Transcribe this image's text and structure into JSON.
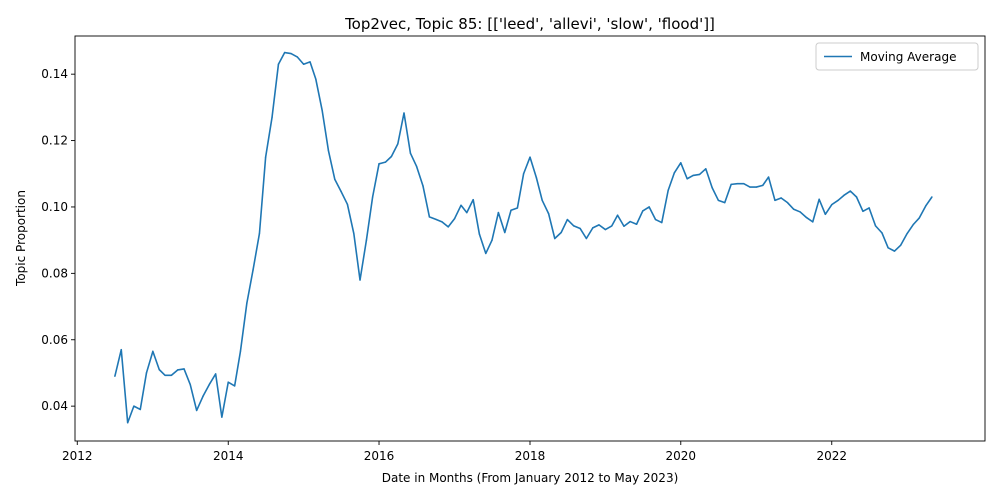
{
  "chart_data": {
    "type": "line",
    "title": "Top2vec, Topic 85: [['leed', 'allevi', 'slow', 'flood']]",
    "xlabel": "Date in Months (From January 2012 to May 2023)",
    "ylabel": "Topic Proportion",
    "xlim": [
      "2011-12-21",
      "2024-01-13"
    ],
    "ylim": [
      0.0295,
      0.1515
    ],
    "x_ticks": [
      "2012-01-01",
      "2014-01-01",
      "2016-01-01",
      "2018-01-01",
      "2020-01-01",
      "2022-01-01"
    ],
    "x_tick_labels": [
      "2012",
      "2014",
      "2016",
      "2018",
      "2020",
      "2022"
    ],
    "y_ticks": [
      0.04,
      0.06,
      0.08,
      0.1,
      0.12,
      0.14
    ],
    "y_tick_labels": [
      "0.04",
      "0.06",
      "0.08",
      "0.10",
      "0.12",
      "0.14"
    ],
    "grid": false,
    "legend": {
      "position": "top-right",
      "entries": [
        "Moving Average"
      ]
    },
    "series": [
      {
        "name": "Moving Average",
        "color": "#1f77b4",
        "x": [
          "2012-07-01",
          "2012-08-01",
          "2012-09-01",
          "2012-10-01",
          "2012-11-01",
          "2012-12-01",
          "2013-01-01",
          "2013-02-01",
          "2013-03-01",
          "2013-04-01",
          "2013-05-01",
          "2013-06-01",
          "2013-07-01",
          "2013-08-01",
          "2013-09-01",
          "2013-10-01",
          "2013-11-01",
          "2013-12-01",
          "2014-01-01",
          "2014-02-01",
          "2014-03-01",
          "2014-04-01",
          "2014-05-01",
          "2014-06-01",
          "2014-07-01",
          "2014-08-01",
          "2014-09-01",
          "2014-10-01",
          "2014-11-01",
          "2014-12-01",
          "2015-01-01",
          "2015-02-01",
          "2015-03-01",
          "2015-04-01",
          "2015-05-01",
          "2015-06-01",
          "2015-07-01",
          "2015-08-01",
          "2015-09-01",
          "2015-10-01",
          "2015-11-01",
          "2015-12-01",
          "2016-01-01",
          "2016-02-01",
          "2016-03-01",
          "2016-04-01",
          "2016-05-01",
          "2016-06-01",
          "2016-07-01",
          "2016-08-01",
          "2016-09-01",
          "2016-10-01",
          "2016-11-01",
          "2016-12-01",
          "2017-01-01",
          "2017-02-01",
          "2017-03-01",
          "2017-04-01",
          "2017-05-01",
          "2017-06-01",
          "2017-07-01",
          "2017-08-01",
          "2017-09-01",
          "2017-10-01",
          "2017-11-01",
          "2017-12-01",
          "2018-01-01",
          "2018-02-01",
          "2018-03-01",
          "2018-04-01",
          "2018-05-01",
          "2018-06-01",
          "2018-07-01",
          "2018-08-01",
          "2018-09-01",
          "2018-10-01",
          "2018-11-01",
          "2018-12-01",
          "2019-01-01",
          "2019-02-01",
          "2019-03-01",
          "2019-04-01",
          "2019-05-01",
          "2019-06-01",
          "2019-07-01",
          "2019-08-01",
          "2019-09-01",
          "2019-10-01",
          "2019-11-01",
          "2019-12-01",
          "2020-01-01",
          "2020-02-01",
          "2020-03-01",
          "2020-04-01",
          "2020-05-01",
          "2020-06-01",
          "2020-07-01",
          "2020-08-01",
          "2020-09-01",
          "2020-10-01",
          "2020-11-01",
          "2020-12-01",
          "2021-01-01",
          "2021-02-01",
          "2021-03-01",
          "2021-04-01",
          "2021-05-01",
          "2021-06-01",
          "2021-07-01",
          "2021-08-01",
          "2021-09-01",
          "2021-10-01",
          "2021-11-01",
          "2021-12-01",
          "2022-01-01",
          "2022-02-01",
          "2022-03-01",
          "2022-04-01",
          "2022-05-01",
          "2022-06-01",
          "2022-07-01",
          "2022-08-01",
          "2022-09-01",
          "2022-10-01",
          "2022-11-01",
          "2022-12-01",
          "2023-01-01",
          "2023-02-01",
          "2023-03-01",
          "2023-04-01",
          "2023-05-01"
        ],
        "y": [
          0.049,
          0.057,
          0.035,
          0.04,
          0.039,
          0.05,
          0.0565,
          0.051,
          0.0493,
          0.0493,
          0.0509,
          0.0512,
          0.0465,
          0.0387,
          0.043,
          0.0465,
          0.0497,
          0.0367,
          0.0472,
          0.0461,
          0.0565,
          0.071,
          0.081,
          0.092,
          0.115,
          0.127,
          0.143,
          0.1465,
          0.1462,
          0.1452,
          0.143,
          0.1437,
          0.1385,
          0.129,
          0.117,
          0.1083,
          0.1047,
          0.1008,
          0.092,
          0.078,
          0.09,
          0.103,
          0.113,
          0.1135,
          0.1152,
          0.119,
          0.1283,
          0.1162,
          0.1122,
          0.1063,
          0.097,
          0.0963,
          0.0955,
          0.094,
          0.0965,
          0.1005,
          0.0983,
          0.1022,
          0.0918,
          0.086,
          0.09,
          0.0983,
          0.0923,
          0.099,
          0.0997,
          0.11,
          0.115,
          0.1088,
          0.102,
          0.098,
          0.0905,
          0.0923,
          0.0962,
          0.0943,
          0.0935,
          0.0905,
          0.0937,
          0.0946,
          0.0932,
          0.0943,
          0.0975,
          0.0942,
          0.0956,
          0.0948,
          0.0988,
          0.1,
          0.0962,
          0.0953,
          0.105,
          0.1103,
          0.1133,
          0.1085,
          0.1095,
          0.1098,
          0.1115,
          0.1058,
          0.102,
          0.1013,
          0.1068,
          0.107,
          0.107,
          0.106,
          0.106,
          0.1065,
          0.109,
          0.102,
          0.1027,
          0.1013,
          0.0993,
          0.0985,
          0.0968,
          0.0955,
          0.1023,
          0.0978,
          0.1007,
          0.102,
          0.1035,
          0.1048,
          0.103,
          0.0987,
          0.0997,
          0.0943,
          0.0922,
          0.0877,
          0.0867,
          0.0885,
          0.092,
          0.0948,
          0.0967,
          0.1003,
          0.103
        ]
      }
    ]
  }
}
